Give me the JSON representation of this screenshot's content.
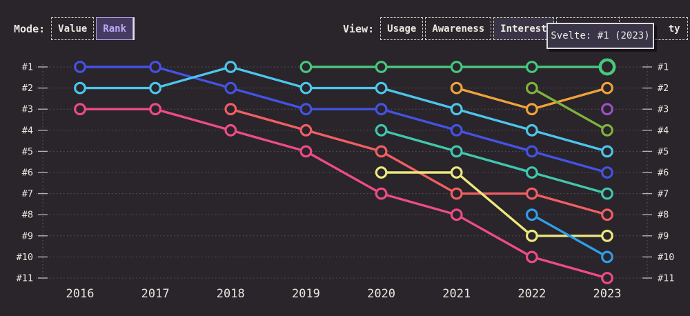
{
  "page": {
    "background": "#2a242b",
    "text_color": "#eae6df"
  },
  "controls": {
    "mode": {
      "label": "Mode:",
      "options": [
        {
          "id": "value",
          "label": "Value",
          "selected": false
        },
        {
          "id": "rank",
          "label": "Rank",
          "selected": true
        }
      ]
    },
    "view": {
      "label": "View:",
      "options": [
        {
          "id": "usage",
          "label": "Usage",
          "selected": false
        },
        {
          "id": "awareness",
          "label": "Awareness",
          "selected": false
        },
        {
          "id": "interest",
          "label": "Interest",
          "selected": true
        },
        {
          "id": "partial",
          "label": "ty",
          "selected": false
        }
      ]
    }
  },
  "tooltip": {
    "text": "Svelte: #1 (2023)",
    "background": "#3a3447",
    "border_color": "#dedbe2"
  },
  "chart_data": {
    "type": "line",
    "subtype": "bump-chart-of-ranks",
    "title": "",
    "xlabel": "",
    "ylabel": "",
    "x": [
      2016,
      2017,
      2018,
      2019,
      2020,
      2021,
      2022,
      2023
    ],
    "y_tick_labels": [
      "#1",
      "#2",
      "#3",
      "#4",
      "#5",
      "#6",
      "#7",
      "#8",
      "#9",
      "#10",
      "#11"
    ],
    "ylim": [
      1,
      11
    ],
    "grid": "dotted-horizontal-with-edge-ticks",
    "legend_position": "none",
    "series": [
      {
        "id": "blue",
        "color": "#4353e2",
        "points": [
          [
            2016,
            1
          ],
          [
            2017,
            1
          ],
          [
            2018,
            2
          ],
          [
            2019,
            3
          ],
          [
            2020,
            3
          ],
          [
            2021,
            4
          ],
          [
            2022,
            5
          ],
          [
            2023,
            6
          ]
        ]
      },
      {
        "id": "cyan",
        "color": "#4cc6ea",
        "points": [
          [
            2016,
            2
          ],
          [
            2017,
            2
          ],
          [
            2018,
            1
          ],
          [
            2019,
            2
          ],
          [
            2020,
            2
          ],
          [
            2021,
            3
          ],
          [
            2022,
            4
          ],
          [
            2023,
            5
          ]
        ]
      },
      {
        "id": "pink",
        "color": "#ec4c85",
        "points": [
          [
            2016,
            3
          ],
          [
            2017,
            3
          ],
          [
            2018,
            4
          ],
          [
            2019,
            5
          ],
          [
            2020,
            7
          ],
          [
            2021,
            8
          ],
          [
            2022,
            10
          ],
          [
            2023,
            11
          ]
        ]
      },
      {
        "id": "red",
        "color": "#ef5f63",
        "points": [
          [
            2018,
            3
          ],
          [
            2019,
            4
          ],
          [
            2020,
            5
          ],
          [
            2021,
            7
          ],
          [
            2022,
            7
          ],
          [
            2023,
            8
          ]
        ]
      },
      {
        "id": "svelte-green",
        "color": "#47c87c",
        "points": [
          [
            2019,
            1
          ],
          [
            2020,
            1
          ],
          [
            2021,
            1
          ],
          [
            2022,
            1
          ],
          [
            2023,
            1
          ]
        ]
      },
      {
        "id": "teal",
        "color": "#3fc7ad",
        "points": [
          [
            2020,
            4
          ],
          [
            2021,
            5
          ],
          [
            2022,
            6
          ],
          [
            2023,
            7
          ]
        ]
      },
      {
        "id": "yellow",
        "color": "#ece87e",
        "points": [
          [
            2020,
            6
          ],
          [
            2021,
            6
          ],
          [
            2022,
            9
          ],
          [
            2023,
            9
          ]
        ]
      },
      {
        "id": "orange",
        "color": "#eda33a",
        "points": [
          [
            2021,
            2
          ],
          [
            2022,
            3
          ],
          [
            2023,
            2
          ]
        ]
      },
      {
        "id": "olive",
        "color": "#7fb33d",
        "points": [
          [
            2022,
            2
          ],
          [
            2023,
            4
          ]
        ]
      },
      {
        "id": "sky",
        "color": "#2f9ee8",
        "points": [
          [
            2022,
            8
          ],
          [
            2023,
            10
          ]
        ]
      },
      {
        "id": "purple",
        "color": "#9c51c2",
        "points": [
          [
            2023,
            3
          ]
        ]
      }
    ],
    "highlight": {
      "series": "svelte-green",
      "x": 2023,
      "rank": 1
    }
  }
}
